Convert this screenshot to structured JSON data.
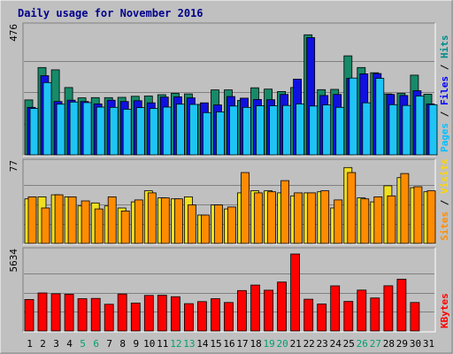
{
  "chart_data": {
    "type": "bar",
    "title": "Daily usage for November 2016",
    "categories": [
      "1",
      "2",
      "3",
      "4",
      "5",
      "6",
      "7",
      "8",
      "9",
      "10",
      "11",
      "12",
      "13",
      "14",
      "15",
      "16",
      "17",
      "18",
      "19",
      "20",
      "21",
      "22",
      "23",
      "24",
      "25",
      "26",
      "27",
      "28",
      "29",
      "30",
      "31"
    ],
    "weekend_days": [
      "5",
      "6",
      "12",
      "13",
      "19",
      "20",
      "26",
      "27"
    ],
    "panels": [
      {
        "id": "hits",
        "ymax_label": "476",
        "ylim": [
          0,
          476
        ],
        "ylabel_parts": [
          {
            "text": "Pages",
            "color": "#00bfff"
          },
          {
            "text": " / ",
            "color": "#000000"
          },
          {
            "text": "Files",
            "color": "#0000ff"
          },
          {
            "text": " / ",
            "color": "#000000"
          },
          {
            "text": "Hits",
            "color": "#008b8b"
          }
        ],
        "series": [
          {
            "name": "Hits",
            "color": "#178a69",
            "values": [
              208,
              331,
              322,
              255,
              216,
              217,
              217,
              218,
              222,
              223,
              228,
              233,
              231,
              191,
              246,
              246,
              206,
              254,
              249,
              240,
              255,
              455,
              247,
              248,
              375,
              331,
              311,
              231,
              233,
              302,
              230
            ]
          },
          {
            "name": "Files",
            "color": "#1010e0",
            "values": [
              180,
              300,
              202,
              207,
              202,
              193,
              207,
              202,
              205,
              197,
              219,
              220,
              216,
              197,
              189,
              221,
              215,
              210,
              209,
              229,
              287,
              444,
              225,
              229,
              290,
              307,
              308,
              229,
              225,
              243,
              193
            ]
          },
          {
            "name": "Pages",
            "color": "#1ec4f5",
            "values": [
              176,
              274,
              192,
              200,
              198,
              181,
              180,
              173,
              179,
              176,
              181,
              192,
              191,
              160,
              163,
              185,
              180,
              186,
              186,
              187,
              193,
              185,
              189,
              180,
              291,
              197,
              290,
              190,
              187,
              223,
              190
            ]
          }
        ]
      },
      {
        "id": "visits",
        "ymax_label": "77",
        "ylim": [
          0,
          77
        ],
        "ylabel_parts": [
          {
            "text": "Sites",
            "color": "#ff8c00"
          },
          {
            "text": " / ",
            "color": "#000000"
          },
          {
            "text": "Visits",
            "color": "#ffd700"
          }
        ],
        "series": [
          {
            "name": "Visits",
            "color": "#f0e020",
            "values": [
              44,
              46,
              48,
              46,
              37,
              40,
              37,
              35,
              41,
              52,
              45,
              44,
              46,
              28,
              38,
              34,
              50,
              52,
              52,
              50,
              47,
              50,
              51,
              35,
              75,
              45,
              41,
              57,
              65,
              55,
              51
            ]
          },
          {
            "name": "Sites",
            "color": "#ff8c00",
            "values": [
              46,
              35,
              48,
              46,
              42,
              34,
              46,
              32,
              43,
              50,
              45,
              44,
              38,
              28,
              38,
              36,
              70,
              50,
              51,
              62,
              50,
              50,
              52,
              43,
              70,
              44,
              46,
              47,
              69,
              56,
              52
            ]
          }
        ]
      },
      {
        "id": "kbytes",
        "ymax_label": "5634",
        "ylim": [
          0,
          5634
        ],
        "ylabel_parts": [
          {
            "text": "KBytes",
            "color": "#ff0000"
          }
        ],
        "series": [
          {
            "name": "KBytes",
            "color": "#ff0000",
            "values": [
              2303,
              2785,
              2727,
              2688,
              2362,
              2381,
              1954,
              2708,
              2048,
              2605,
              2616,
              2505,
              1998,
              2147,
              2362,
              2088,
              2960,
              3359,
              2986,
              3583,
              5634,
              2322,
              1974,
              3301,
              2166,
              2990,
              2414,
              3308,
              3788,
              2088,
              0
            ]
          }
        ]
      }
    ]
  }
}
